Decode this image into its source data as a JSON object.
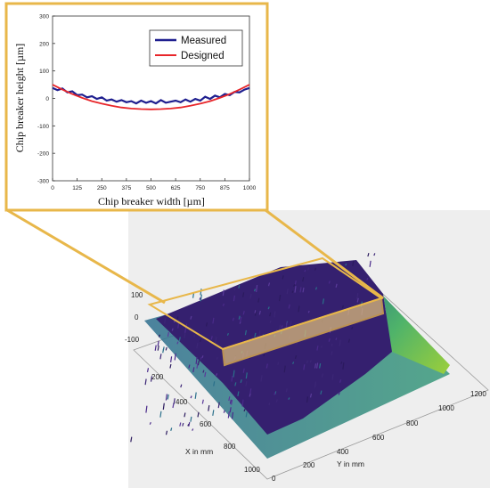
{
  "chart_data": [
    {
      "type": "line",
      "title": "",
      "xlabel": "Chip breaker width [µm]",
      "ylabel": "Chip breaker height [µm]",
      "xlim": [
        0,
        1000
      ],
      "ylim": [
        -300,
        300
      ],
      "xticks": [
        0,
        125,
        250,
        375,
        500,
        625,
        750,
        875,
        1000
      ],
      "yticks": [
        -300,
        -200,
        -100,
        0,
        100,
        200,
        300
      ],
      "grid": false,
      "legend": "top-right",
      "series": [
        {
          "name": "Measured",
          "color": "#1f1f8f",
          "x": [
            0,
            25,
            50,
            75,
            100,
            125,
            150,
            175,
            200,
            225,
            250,
            275,
            300,
            325,
            350,
            375,
            400,
            425,
            450,
            475,
            500,
            525,
            550,
            575,
            600,
            625,
            650,
            675,
            700,
            725,
            750,
            775,
            800,
            825,
            850,
            875,
            900,
            925,
            950,
            975,
            1000
          ],
          "y": [
            38,
            30,
            36,
            22,
            26,
            12,
            14,
            4,
            8,
            -2,
            4,
            -8,
            -4,
            -12,
            -6,
            -14,
            -10,
            -18,
            -8,
            -16,
            -10,
            -18,
            -6,
            -16,
            -12,
            -8,
            -14,
            -4,
            -12,
            -2,
            -8,
            6,
            -2,
            10,
            4,
            16,
            12,
            24,
            22,
            32,
            38
          ]
        },
        {
          "name": "Designed",
          "color": "#e8262a",
          "x": [
            0,
            50,
            100,
            150,
            200,
            250,
            300,
            350,
            400,
            450,
            500,
            550,
            600,
            650,
            700,
            750,
            800,
            850,
            900,
            950,
            1000
          ],
          "y": [
            50,
            32,
            16,
            2,
            -10,
            -19,
            -27,
            -33,
            -37,
            -39,
            -40,
            -39,
            -37,
            -33,
            -27,
            -19,
            -10,
            2,
            16,
            32,
            50
          ]
        }
      ]
    },
    {
      "type": "surface",
      "title": "",
      "xlabel": "X in mm",
      "ylabel": "Y in mm",
      "xticks": [
        200,
        400,
        600,
        800,
        1000
      ],
      "yticks": [
        0,
        200,
        400,
        600,
        800,
        1000,
        1200
      ],
      "zticks": [
        -100,
        0,
        100
      ],
      "grid": true
    }
  ]
}
